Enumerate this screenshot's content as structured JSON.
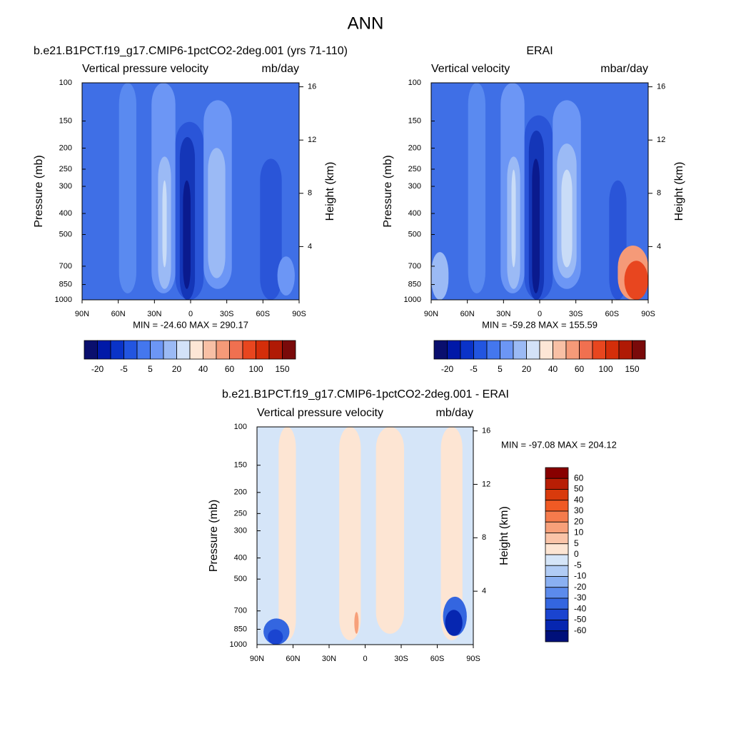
{
  "title": "ANN",
  "chart_data": [
    {
      "type": "contour",
      "title": "b.e21.B1PCT.f19_g17.CMIP6-1pctCO2-2deg.001 (yrs 71-110)",
      "left_label": "Vertical pressure velocity",
      "right_label": "mb/day",
      "ylabel": "Pressure (mb)",
      "y2label": "Height (km)",
      "annotation": "MIN = -24.60  MAX = 290.17",
      "xlim": [
        90,
        -90
      ],
      "xticks": [
        {
          "value": 90,
          "label": "90N"
        },
        {
          "value": 60,
          "label": "60N"
        },
        {
          "value": 30,
          "label": "30N"
        },
        0,
        {
          "value": -30,
          "label": "30S"
        },
        {
          "value": -60,
          "label": "60S"
        },
        {
          "value": -90,
          "label": "90S"
        }
      ],
      "ylim": [
        1000,
        100
      ],
      "log_y": true,
      "yticks": [
        100,
        150,
        200,
        250,
        300,
        400,
        500,
        700,
        850,
        1000
      ],
      "y2lim": [
        0,
        16.3
      ],
      "y2ticks": [
        4,
        8,
        12,
        16
      ],
      "colorbar": {
        "orientation": "horizontal",
        "colors": [
          "#0a0f6e",
          "#0019a8",
          "#0a33c8",
          "#2255e0",
          "#4477ee",
          "#6c96f5",
          "#9bbaf5",
          "#d3e2f8",
          "#fde6d6",
          "#f8c0a5",
          "#f59a78",
          "#f07050",
          "#e8461f",
          "#d42e0a",
          "#b01a05",
          "#7a0a0a"
        ],
        "labels": [
          -20,
          -5,
          5,
          20,
          40,
          60,
          100,
          150
        ]
      }
    },
    {
      "type": "contour",
      "title": "ERAI",
      "left_label": "Vertical velocity",
      "right_label": "mbar/day",
      "ylabel": "Pressure (mb)",
      "y2label": "Height (km)",
      "annotation": "MIN = -59.28  MAX = 155.59",
      "xlim": [
        90,
        -90
      ],
      "xticks": [
        {
          "value": 90,
          "label": "90N"
        },
        {
          "value": 60,
          "label": "60N"
        },
        {
          "value": 30,
          "label": "30N"
        },
        0,
        {
          "value": -30,
          "label": "30S"
        },
        {
          "value": -60,
          "label": "60S"
        },
        {
          "value": -90,
          "label": "90S"
        }
      ],
      "ylim": [
        1000,
        100
      ],
      "log_y": true,
      "yticks": [
        100,
        150,
        200,
        250,
        300,
        400,
        500,
        700,
        850,
        1000
      ],
      "y2lim": [
        0,
        16.3
      ],
      "y2ticks": [
        4,
        8,
        12,
        16
      ],
      "colorbar": {
        "orientation": "horizontal",
        "colors": [
          "#0a0f6e",
          "#0019a8",
          "#0a33c8",
          "#2255e0",
          "#4477ee",
          "#6c96f5",
          "#9bbaf5",
          "#d3e2f8",
          "#fde6d6",
          "#f8c0a5",
          "#f59a78",
          "#f07050",
          "#e8461f",
          "#d42e0a",
          "#b01a05",
          "#7a0a0a"
        ],
        "labels": [
          -20,
          -5,
          5,
          20,
          40,
          60,
          100,
          150
        ]
      }
    },
    {
      "type": "contour",
      "title": "b.e21.B1PCT.f19_g17.CMIP6-1pctCO2-2deg.001 - ERAI",
      "left_label": "Vertical pressure velocity",
      "right_label": "mb/day",
      "ylabel": "Pressure (mb)",
      "y2label": "Height (km)",
      "annotation": "MIN = -97.08  MAX = 204.12",
      "xlim": [
        90,
        -90
      ],
      "xticks": [
        {
          "value": 90,
          "label": "90N"
        },
        {
          "value": 60,
          "label": "60N"
        },
        {
          "value": 30,
          "label": "30N"
        },
        0,
        {
          "value": -30,
          "label": "30S"
        },
        {
          "value": -60,
          "label": "60S"
        },
        {
          "value": -90,
          "label": "90S"
        }
      ],
      "ylim": [
        1000,
        100
      ],
      "log_y": true,
      "yticks": [
        100,
        150,
        200,
        250,
        300,
        400,
        500,
        700,
        850,
        1000
      ],
      "y2lim": [
        0,
        16.3
      ],
      "y2ticks": [
        4,
        8,
        12,
        16
      ],
      "colorbar": {
        "orientation": "vertical",
        "colors": [
          "#880000",
          "#b81e05",
          "#d93a0c",
          "#f05a24",
          "#f57b4c",
          "#f7a07a",
          "#fac4a8",
          "#fde5d3",
          "#d5e5f8",
          "#b1ccf5",
          "#8ab0f2",
          "#5c8bec",
          "#3466e0",
          "#1a44d0",
          "#0626b0",
          "#00107a"
        ],
        "labels": [
          60,
          50,
          40,
          30,
          20,
          10,
          5,
          0,
          -5,
          -10,
          -20,
          -30,
          -40,
          -50,
          -60
        ]
      }
    }
  ]
}
